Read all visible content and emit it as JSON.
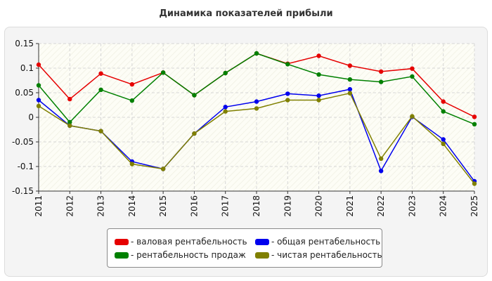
{
  "chart_data": {
    "type": "line",
    "title": "Динамика показателей прибыли",
    "xlabel": "",
    "ylabel": "",
    "x": [
      "2011",
      "2012",
      "2013",
      "2014",
      "2015",
      "2016",
      "2017",
      "2018",
      "2019",
      "2020",
      "2021",
      "2022",
      "2023",
      "2024",
      "2025"
    ],
    "ylim": [
      -0.15,
      0.15
    ],
    "yticks": [
      0.15,
      0.1,
      0.05,
      0,
      -0.05,
      -0.1,
      -0.15
    ],
    "ytick_labels": [
      "0.15",
      "0.1",
      "0.05",
      "0",
      "-0.05",
      "-0.1",
      "-0.15"
    ],
    "grid": true,
    "legend_position": "bottom",
    "series": [
      {
        "name": "валовая рентабельность",
        "legend_label": "- валовая рентабельность",
        "color": "#e60000",
        "values": [
          0.107,
          0.037,
          0.089,
          0.067,
          0.091,
          0.045,
          0.09,
          0.13,
          0.109,
          0.125,
          0.105,
          0.093,
          0.099,
          0.032,
          0.001
        ]
      },
      {
        "name": "рентабельность продаж",
        "legend_label": "- рентабельность продаж",
        "color": "#008000",
        "values": [
          0.065,
          -0.01,
          0.056,
          0.034,
          0.091,
          0.045,
          0.09,
          0.13,
          0.108,
          0.087,
          0.077,
          0.072,
          0.083,
          0.012,
          -0.014
        ]
      },
      {
        "name": "общая рентабельность",
        "legend_label": "- общая рентабельность",
        "color": "#0000ee",
        "values": [
          0.035,
          -0.017,
          -0.028,
          -0.09,
          -0.105,
          -0.033,
          0.021,
          0.032,
          0.048,
          0.044,
          0.057,
          -0.109,
          0.001,
          -0.045,
          -0.13
        ]
      },
      {
        "name": "чистая рентабельность",
        "legend_label": "- чистая рентабельность",
        "color": "#808000",
        "values": [
          0.023,
          -0.017,
          -0.028,
          -0.095,
          -0.105,
          -0.033,
          0.012,
          0.018,
          0.035,
          0.035,
          0.049,
          -0.084,
          0.002,
          -0.054,
          -0.135
        ]
      }
    ]
  }
}
